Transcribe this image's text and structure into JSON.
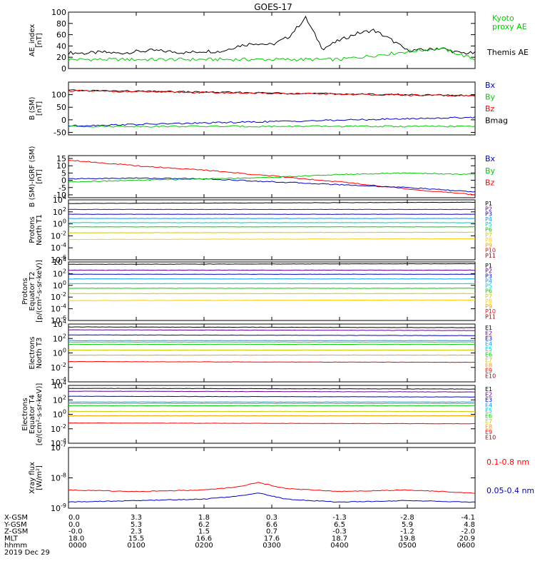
{
  "title": "GOES-17",
  "chart_data": [
    {
      "type": "line",
      "ylabel": [
        "AE_index",
        "[nT]"
      ],
      "ylim": [
        0,
        100
      ],
      "yticks": [
        "100",
        "80",
        "60",
        "40",
        "20",
        "0"
      ],
      "legend": [
        {
          "text": "Kyoto",
          "color": "#00cc00"
        },
        {
          "text": "proxy AE",
          "color": "#00cc00"
        },
        {
          "text": "Themis AE",
          "color": "#000000"
        }
      ],
      "series": [
        {
          "name": "Themis AE",
          "color": "#000000",
          "x": [
            0,
            0.25,
            0.5,
            0.75,
            1,
            1.25,
            1.5,
            1.75,
            2,
            2.25,
            2.5,
            2.75,
            3,
            3.25,
            3.5,
            3.75,
            4,
            4.25,
            4.5,
            4.75,
            5,
            5.25,
            5.5,
            5.75,
            6
          ],
          "values": [
            28,
            27,
            29,
            27,
            30,
            32,
            30,
            28,
            31,
            30,
            40,
            45,
            42,
            56,
            90,
            35,
            50,
            62,
            68,
            52,
            32,
            33,
            36,
            28,
            27
          ]
        },
        {
          "name": "Kyoto",
          "color": "#00cc00",
          "x": [
            0,
            1,
            2,
            3,
            4,
            5,
            5.5,
            6
          ],
          "values": [
            16,
            16,
            16,
            16,
            16,
            30,
            36,
            16
          ]
        }
      ]
    },
    {
      "type": "line",
      "ylabel": [
        "B (SM)",
        "[nT]"
      ],
      "ylim": [
        -60,
        150
      ],
      "yticks": [
        "100",
        "50",
        "0",
        "-50"
      ],
      "legend": [
        {
          "text": "Bx",
          "color": "#0000cc"
        },
        {
          "text": "By",
          "color": "#00cc00"
        },
        {
          "text": "Bz",
          "color": "#ff0000"
        },
        {
          "text": "Bmag",
          "color": "#000000"
        }
      ],
      "series": [
        {
          "name": "Bmag",
          "color": "#000000",
          "x": [
            0,
            6
          ],
          "values": [
            117,
            96
          ]
        },
        {
          "name": "Bz",
          "color": "#ff0000",
          "x": [
            0,
            6
          ],
          "values": [
            115,
            95
          ]
        },
        {
          "name": "Bx",
          "color": "#0000cc",
          "x": [
            0,
            6
          ],
          "values": [
            -24,
            10
          ]
        },
        {
          "name": "By",
          "color": "#00cc00",
          "x": [
            0,
            6
          ],
          "values": [
            -26,
            -26
          ]
        }
      ]
    },
    {
      "type": "line",
      "ylabel": [
        "B (SM)-IGRF (SM)",
        "[nT]"
      ],
      "ylim": [
        -12,
        17
      ],
      "yticks": [
        "15",
        "10",
        "5",
        "0",
        "-5",
        "-10"
      ],
      "legend": [
        {
          "text": "Bx",
          "color": "#0000cc"
        },
        {
          "text": "By",
          "color": "#00cc00"
        },
        {
          "text": "Bz",
          "color": "#ff0000"
        }
      ],
      "series": [
        {
          "name": "Bz",
          "color": "#ff0000",
          "x": [
            0,
            1,
            2,
            3,
            4,
            5,
            6
          ],
          "values": [
            14,
            10,
            7,
            3,
            -1,
            -6,
            -10
          ]
        },
        {
          "name": "Bx",
          "color": "#0000cc",
          "x": [
            0,
            1,
            2,
            3,
            4,
            5,
            6
          ],
          "values": [
            1,
            1.5,
            1,
            -1,
            -3,
            -5,
            -8
          ]
        },
        {
          "name": "By",
          "color": "#00cc00",
          "x": [
            0,
            1,
            2,
            3,
            4,
            5,
            6
          ],
          "values": [
            -1,
            0,
            1,
            2,
            4,
            5,
            4
          ]
        }
      ]
    },
    {
      "type": "line",
      "ylabel": [
        "Protons",
        "North T1"
      ],
      "ylog": true,
      "ylim": [
        -6,
        4
      ],
      "yticks": [
        {
          "m": "10",
          "e": "4"
        },
        {
          "m": "10",
          "e": "2"
        },
        {
          "m": "10",
          "e": "0"
        },
        {
          "m": "10",
          "e": "-2"
        },
        {
          "m": "10",
          "e": "-4"
        },
        {
          "m": "10",
          "e": "-6"
        }
      ],
      "legend": [
        {
          "text": "P1",
          "color": "#000000"
        },
        {
          "text": "P2",
          "color": "#660099"
        },
        {
          "text": "P3",
          "color": "#0000cc"
        },
        {
          "text": "P4",
          "color": "#0099ff"
        },
        {
          "text": "P5",
          "color": "#00cccc"
        },
        {
          "text": "P6",
          "color": "#00cc00"
        },
        {
          "text": "P7",
          "color": "#cccc00"
        },
        {
          "text": "P8",
          "color": "#ffcc00"
        },
        {
          "text": "P9",
          "color": "#ff9900"
        },
        {
          "text": "P10",
          "color": "#ff0000"
        },
        {
          "text": "P11",
          "color": "#990000"
        }
      ],
      "series": [
        {
          "name": "P1",
          "color": "#000000",
          "x": [
            0,
            6
          ],
          "values": [
            3.4,
            3.6
          ]
        },
        {
          "name": "P2",
          "color": "#660099",
          "x": [
            0,
            6
          ],
          "values": [
            2.4,
            2.4
          ]
        },
        {
          "name": "P3",
          "color": "#0000cc",
          "x": [
            0,
            6
          ],
          "values": [
            1.6,
            1.6
          ]
        },
        {
          "name": "P4",
          "color": "#0099ff",
          "x": [
            0,
            6
          ],
          "values": [
            0.9,
            0.9
          ]
        },
        {
          "name": "P5",
          "color": "#00cccc",
          "x": [
            0,
            6
          ],
          "values": [
            0.2,
            0.2
          ]
        },
        {
          "name": "P6",
          "color": "#00cc00",
          "x": [
            0,
            6
          ],
          "values": [
            -0.5,
            -0.5
          ]
        },
        {
          "name": "P7",
          "color": "#cccc00",
          "x": [
            0,
            6
          ],
          "values": [
            -1.5,
            -1.4
          ]
        },
        {
          "name": "P8",
          "color": "#ffcc00",
          "x": [
            0,
            6
          ],
          "values": [
            -2.6,
            -2.5
          ]
        }
      ]
    },
    {
      "type": "line",
      "ylabel": [
        "Protons",
        "Equator T2",
        "[p/(cm²-s-sr-keV)]"
      ],
      "ylog": true,
      "ylim": [
        -6,
        4
      ],
      "yticks": [
        {
          "m": "10",
          "e": "4"
        },
        {
          "m": "10",
          "e": "2"
        },
        {
          "m": "10",
          "e": "0"
        },
        {
          "m": "10",
          "e": "-2"
        },
        {
          "m": "10",
          "e": "-4"
        },
        {
          "m": "10",
          "e": "-6"
        }
      ],
      "legend": [
        {
          "text": "P1",
          "color": "#000000"
        },
        {
          "text": "P2",
          "color": "#660099"
        },
        {
          "text": "P3",
          "color": "#0000cc"
        },
        {
          "text": "P4",
          "color": "#0099ff"
        },
        {
          "text": "P5",
          "color": "#00cccc"
        },
        {
          "text": "P6",
          "color": "#00cc00"
        },
        {
          "text": "P7",
          "color": "#cccc00"
        },
        {
          "text": "P8",
          "color": "#ffcc00"
        },
        {
          "text": "P9",
          "color": "#ff9900"
        },
        {
          "text": "P10",
          "color": "#ff0000"
        },
        {
          "text": "P11",
          "color": "#990000"
        }
      ],
      "series": [
        {
          "name": "P1",
          "color": "#000000",
          "x": [
            0,
            6
          ],
          "values": [
            3.6,
            3.7
          ]
        },
        {
          "name": "P2",
          "color": "#660099",
          "x": [
            0,
            6
          ],
          "values": [
            2.6,
            2.6
          ]
        },
        {
          "name": "P3",
          "color": "#0000cc",
          "x": [
            0,
            6
          ],
          "values": [
            1.9,
            1.9
          ]
        },
        {
          "name": "P4",
          "color": "#0099ff",
          "x": [
            0,
            6
          ],
          "values": [
            1.1,
            1.1
          ]
        },
        {
          "name": "P5",
          "color": "#00cccc",
          "x": [
            0,
            6
          ],
          "values": [
            0.3,
            0.3
          ]
        },
        {
          "name": "P6",
          "color": "#00cc00",
          "x": [
            0,
            6
          ],
          "values": [
            -0.5,
            -0.5
          ]
        },
        {
          "name": "P7",
          "color": "#cccc00",
          "x": [
            0,
            6
          ],
          "values": [
            -1.4,
            -1.4
          ]
        },
        {
          "name": "P8",
          "color": "#ffcc00",
          "x": [
            0,
            6
          ],
          "values": [
            -2.6,
            -2.5
          ]
        }
      ]
    },
    {
      "type": "line",
      "ylabel": [
        "Electrons",
        "North T3"
      ],
      "ylog": true,
      "ylim": [
        -4,
        4
      ],
      "yticks": [
        {
          "m": "10",
          "e": "4"
        },
        {
          "m": "10",
          "e": "2"
        },
        {
          "m": "10",
          "e": "0"
        },
        {
          "m": "10",
          "e": "-2"
        },
        {
          "m": "10",
          "e": "-4"
        }
      ],
      "legend": [
        {
          "text": "E1",
          "color": "#000000"
        },
        {
          "text": "E2",
          "color": "#660099"
        },
        {
          "text": "E3",
          "color": "#0000cc"
        },
        {
          "text": "E4",
          "color": "#0099ff"
        },
        {
          "text": "E5",
          "color": "#00cccc"
        },
        {
          "text": "E6",
          "color": "#00cc00"
        },
        {
          "text": "E7",
          "color": "#cccc00"
        },
        {
          "text": "E8",
          "color": "#ff9900"
        },
        {
          "text": "E9",
          "color": "#ff0000"
        },
        {
          "text": "E10",
          "color": "#990000"
        }
      ],
      "series": [
        {
          "name": "E1",
          "color": "#000000",
          "x": [
            0,
            6
          ],
          "values": [
            3.6,
            3.5
          ]
        },
        {
          "name": "E2",
          "color": "#660099",
          "x": [
            0,
            6
          ],
          "values": [
            3.2,
            3.1
          ]
        },
        {
          "name": "E3",
          "color": "#0000cc",
          "x": [
            0,
            6
          ],
          "values": [
            2.5,
            2.4
          ]
        },
        {
          "name": "E4",
          "color": "#0099ff",
          "x": [
            0,
            6
          ],
          "values": [
            1.7,
            1.7
          ]
        },
        {
          "name": "E5",
          "color": "#00cccc",
          "x": [
            0,
            6
          ],
          "values": [
            1.5,
            1.5
          ]
        },
        {
          "name": "E6",
          "color": "#00cc00",
          "x": [
            0,
            6
          ],
          "values": [
            1.2,
            1.2
          ]
        },
        {
          "name": "E7",
          "color": "#cccc00",
          "x": [
            0,
            6
          ],
          "values": [
            0.4,
            0.4
          ]
        },
        {
          "name": "E8",
          "color": "#ff9900",
          "x": [
            0,
            6
          ],
          "values": [
            -0.3,
            -0.3
          ]
        },
        {
          "name": "E9",
          "color": "#ff0000",
          "x": [
            0,
            6
          ],
          "values": [
            -1.2,
            -1.3
          ]
        }
      ]
    },
    {
      "type": "line",
      "ylabel": [
        "Electrons",
        "Equator T4",
        "[e/(cm²-s-sr-keV)]"
      ],
      "ylog": true,
      "ylim": [
        -4,
        4
      ],
      "yticks": [
        {
          "m": "10",
          "e": "4"
        },
        {
          "m": "10",
          "e": "2"
        },
        {
          "m": "10",
          "e": "0"
        },
        {
          "m": "10",
          "e": "-2"
        },
        {
          "m": "10",
          "e": "-4"
        }
      ],
      "legend": [
        {
          "text": "E1",
          "color": "#000000"
        },
        {
          "text": "E2",
          "color": "#660099"
        },
        {
          "text": "E3",
          "color": "#0000cc"
        },
        {
          "text": "E4",
          "color": "#0099ff"
        },
        {
          "text": "E5",
          "color": "#00cccc"
        },
        {
          "text": "E6",
          "color": "#00cc00"
        },
        {
          "text": "E7",
          "color": "#cccc00"
        },
        {
          "text": "E8",
          "color": "#ff9900"
        },
        {
          "text": "E9",
          "color": "#ff0000"
        },
        {
          "text": "E10",
          "color": "#990000"
        }
      ],
      "series": [
        {
          "name": "E1",
          "color": "#000000",
          "x": [
            0,
            6
          ],
          "values": [
            3.6,
            3.5
          ]
        },
        {
          "name": "E2",
          "color": "#660099",
          "x": [
            0,
            6
          ],
          "values": [
            3.2,
            3.1
          ]
        },
        {
          "name": "E3",
          "color": "#0000cc",
          "x": [
            0,
            6
          ],
          "values": [
            2.5,
            2.4
          ]
        },
        {
          "name": "E4",
          "color": "#0099ff",
          "x": [
            0,
            6
          ],
          "values": [
            1.7,
            1.7
          ]
        },
        {
          "name": "E5",
          "color": "#00cccc",
          "x": [
            0,
            6
          ],
          "values": [
            1.5,
            1.5
          ]
        },
        {
          "name": "E6",
          "color": "#00cc00",
          "x": [
            0,
            6
          ],
          "values": [
            1.2,
            1.2
          ]
        },
        {
          "name": "E7",
          "color": "#cccc00",
          "x": [
            0,
            6
          ],
          "values": [
            0.4,
            0.4
          ]
        },
        {
          "name": "E8",
          "color": "#ff9900",
          "x": [
            0,
            6
          ],
          "values": [
            -0.2,
            -0.2
          ]
        },
        {
          "name": "E9",
          "color": "#ff0000",
          "x": [
            0,
            6
          ],
          "values": [
            -1.2,
            -1.3
          ]
        }
      ]
    },
    {
      "type": "line",
      "ylabel": [
        "Xray flux",
        "[W/m²]"
      ],
      "ylog": true,
      "ylim": [
        -9,
        -7
      ],
      "yticks": [
        {
          "m": "10",
          "e": "-7"
        },
        {
          "m": "10",
          "e": "-8"
        },
        {
          "m": "10",
          "e": "-9"
        }
      ],
      "legend": [
        {
          "text": "0.1-0.8 nm",
          "color": "#ff0000"
        },
        {
          "text": "0.05-0.4 nm",
          "color": "#0000cc"
        }
      ],
      "series": [
        {
          "name": "0.1-0.8 nm",
          "color": "#ff0000",
          "x": [
            0,
            1,
            2,
            2.5,
            2.8,
            3.2,
            4,
            5,
            6
          ],
          "values": [
            -8.4,
            -8.45,
            -8.4,
            -8.3,
            -8.15,
            -8.35,
            -8.45,
            -8.4,
            -8.5
          ]
        },
        {
          "name": "0.05-0.4 nm",
          "color": "#0000cc",
          "x": [
            0,
            1,
            2,
            2.5,
            2.8,
            3.2,
            4,
            5,
            6
          ],
          "values": [
            -8.8,
            -8.75,
            -8.7,
            -8.6,
            -8.5,
            -8.7,
            -8.8,
            -8.75,
            -8.8
          ]
        }
      ]
    }
  ],
  "xaxis": {
    "rows": [
      {
        "label": "X-GSM",
        "values": [
          "0.0",
          "3.3",
          "1.8",
          "0.3",
          "-1.3",
          "-2.8",
          "-4.1"
        ]
      },
      {
        "label": "Y-GSM",
        "values": [
          "0.0",
          "5.3",
          "6.2",
          "6.6",
          "6.5",
          "5.9",
          "4.8"
        ]
      },
      {
        "label": "Z-GSM",
        "values": [
          "-0.0",
          "2.3",
          "1.5",
          "0.7",
          "-0.3",
          "-1.2",
          "-2.0"
        ]
      },
      {
        "label": "MLT",
        "values": [
          "18.0",
          "15.5",
          "16.6",
          "17.6",
          "18.7",
          "19.8",
          "20.9"
        ]
      },
      {
        "label": "hhmm",
        "values": [
          "0000",
          "0100",
          "0200",
          "0300",
          "0400",
          "0500",
          "0600"
        ]
      }
    ],
    "date": "2019 Dec 29"
  }
}
